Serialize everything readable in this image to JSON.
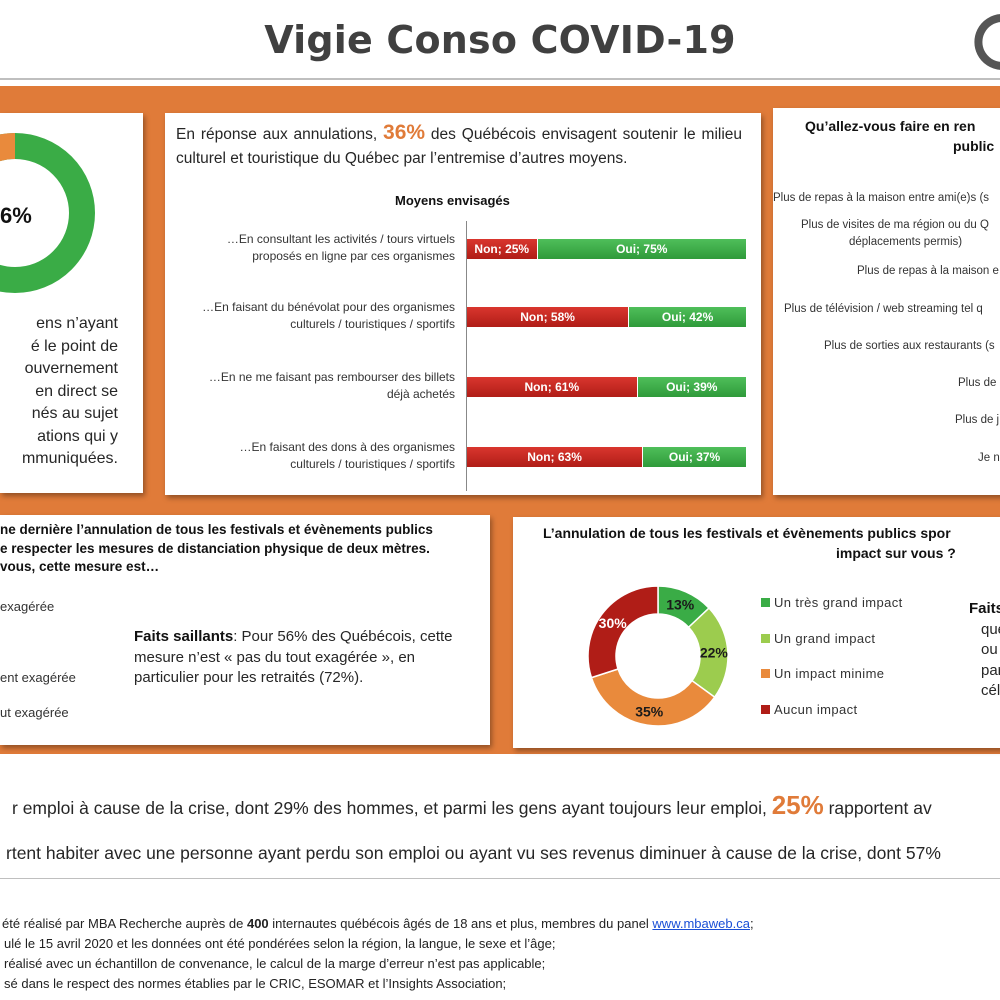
{
  "header": {
    "title": "Vigie Conso COVID-19"
  },
  "panel1": {
    "donut_label": "6%",
    "donut_value_pct": 6,
    "text_lines": [
      "ens n’ayant",
      "é le point de",
      "ouvernement",
      "en direct se",
      "nés au sujet",
      "ations qui y",
      "mmuniquées."
    ]
  },
  "panel2": {
    "intro_before": "En réponse aux annulations, ",
    "intro_highlight": "36%",
    "intro_after": " des Québécois envisagent soutenir le milieu culturel et touristique du Québec par l’entremise d’autres moyens."
  },
  "chart_data": [
    {
      "type": "bar",
      "title": "Moyens envisagés",
      "orientation": "horizontal-stacked",
      "categories": [
        "…En consultant les activités / tours virtuels proposés en ligne par ces organismes",
        "…En faisant du bénévolat pour des organismes culturels / touristiques / sportifs",
        "…En ne me faisant pas rembourser des billets déjà achetés",
        "…En faisant des dons à des organismes culturels / touristiques / sportifs"
      ],
      "category_lines": [
        [
          "…En consultant les activités / tours virtuels",
          "proposés en ligne par ces organismes"
        ],
        [
          "…En faisant du bénévolat pour des organismes",
          "culturels / touristiques / sportifs"
        ],
        [
          "…En ne me faisant pas rembourser des billets",
          "déjà achetés"
        ],
        [
          "…En faisant des dons à des organismes",
          "culturels / touristiques / sportifs"
        ]
      ],
      "series": [
        {
          "name": "Non",
          "values": [
            25,
            58,
            61,
            63
          ],
          "color": "#c0261f"
        },
        {
          "name": "Oui",
          "values": [
            75,
            42,
            39,
            37
          ],
          "color": "#3aac46"
        }
      ],
      "labels": {
        "Non": [
          "Non; 25%",
          "Non; 58%",
          "Non; 61%",
          "Non; 63%"
        ],
        "Oui": [
          "Oui; 75%",
          "Oui; 42%",
          "Oui; 39%",
          "Oui; 37%"
        ]
      },
      "xlim": [
        0,
        100
      ]
    },
    {
      "type": "pie",
      "title": "",
      "categories": [
        "Un très grand impact",
        "Un grand impact",
        "Un impact minime",
        "Aucun impact"
      ],
      "values": [
        13,
        22,
        35,
        30
      ],
      "labels": [
        "13%",
        "22%",
        "35%",
        "30%"
      ],
      "colors": [
        "#3aac46",
        "#9ccc4e",
        "#e98a3c",
        "#b01d17"
      ],
      "legend": "right"
    }
  ],
  "panel3": {
    "title_line1": "Qu’allez-vous faire en ren",
    "title_line2": "public",
    "items": [
      "Plus de repas à la maison entre ami(e)s (s",
      "Plus de visites de ma région ou du Q",
      "déplacements permis)",
      "Plus de repas à la maison e",
      "Plus de télévision / web streaming tel q",
      "Plus de sorties aux restaurants (s",
      "Plus de",
      "Plus de j",
      "Je n"
    ]
  },
  "panel4": {
    "question_lines": [
      "ne dernière l’annulation de tous les festivals et évènements publics",
      "e respecter les mesures de distanciation physique de deux mètres.",
      "vous, cette mesure est…"
    ],
    "options": [
      "exagérée",
      "ent exagérée",
      "ut exagérée"
    ],
    "facts_label": "Faits saillants",
    "facts_text": ": Pour 56% des Québécois, cette mesure n’est « pas du tout exagérée », en particulier pour les retraités (72%)."
  },
  "panel5": {
    "question_line1": "L’annulation de tous les festivals et évènements publics spor",
    "question_line2": "impact sur vous ?",
    "facts_lines": [
      "Faits",
      "que",
      "ou",
      "part",
      "célib"
    ]
  },
  "stats": {
    "line1_before": "r emploi à cause de la crise, dont 29% des hommes, et parmi les gens ayant toujours leur emploi, ",
    "line1_highlight": "25%",
    "line1_after": " rapportent av",
    "line2": "rtent habiter avec une personne ayant perdu son emploi ou ayant vu ses revenus diminuer à cause de la crise, dont 57%"
  },
  "footer": {
    "line1_before": "été réalisé par MBA Recherche auprès de ",
    "line1_bold": "400",
    "line1_after": " internautes québécois âgés de 18 ans et plus, membres du panel ",
    "line1_link": "www.mbaweb.ca",
    "line1_end": ";",
    "line2": "ulé le 15 avril 2020 et les données ont été pondérées selon la région, la langue, le sexe et l’âge;",
    "line3": "réalisé avec un échantillon de convenance, le calcul de la marge d’erreur n’est pas applicable;",
    "line4": "sé dans le respect des normes établies par le CRIC, ESOMAR et l’Insights Association;"
  }
}
